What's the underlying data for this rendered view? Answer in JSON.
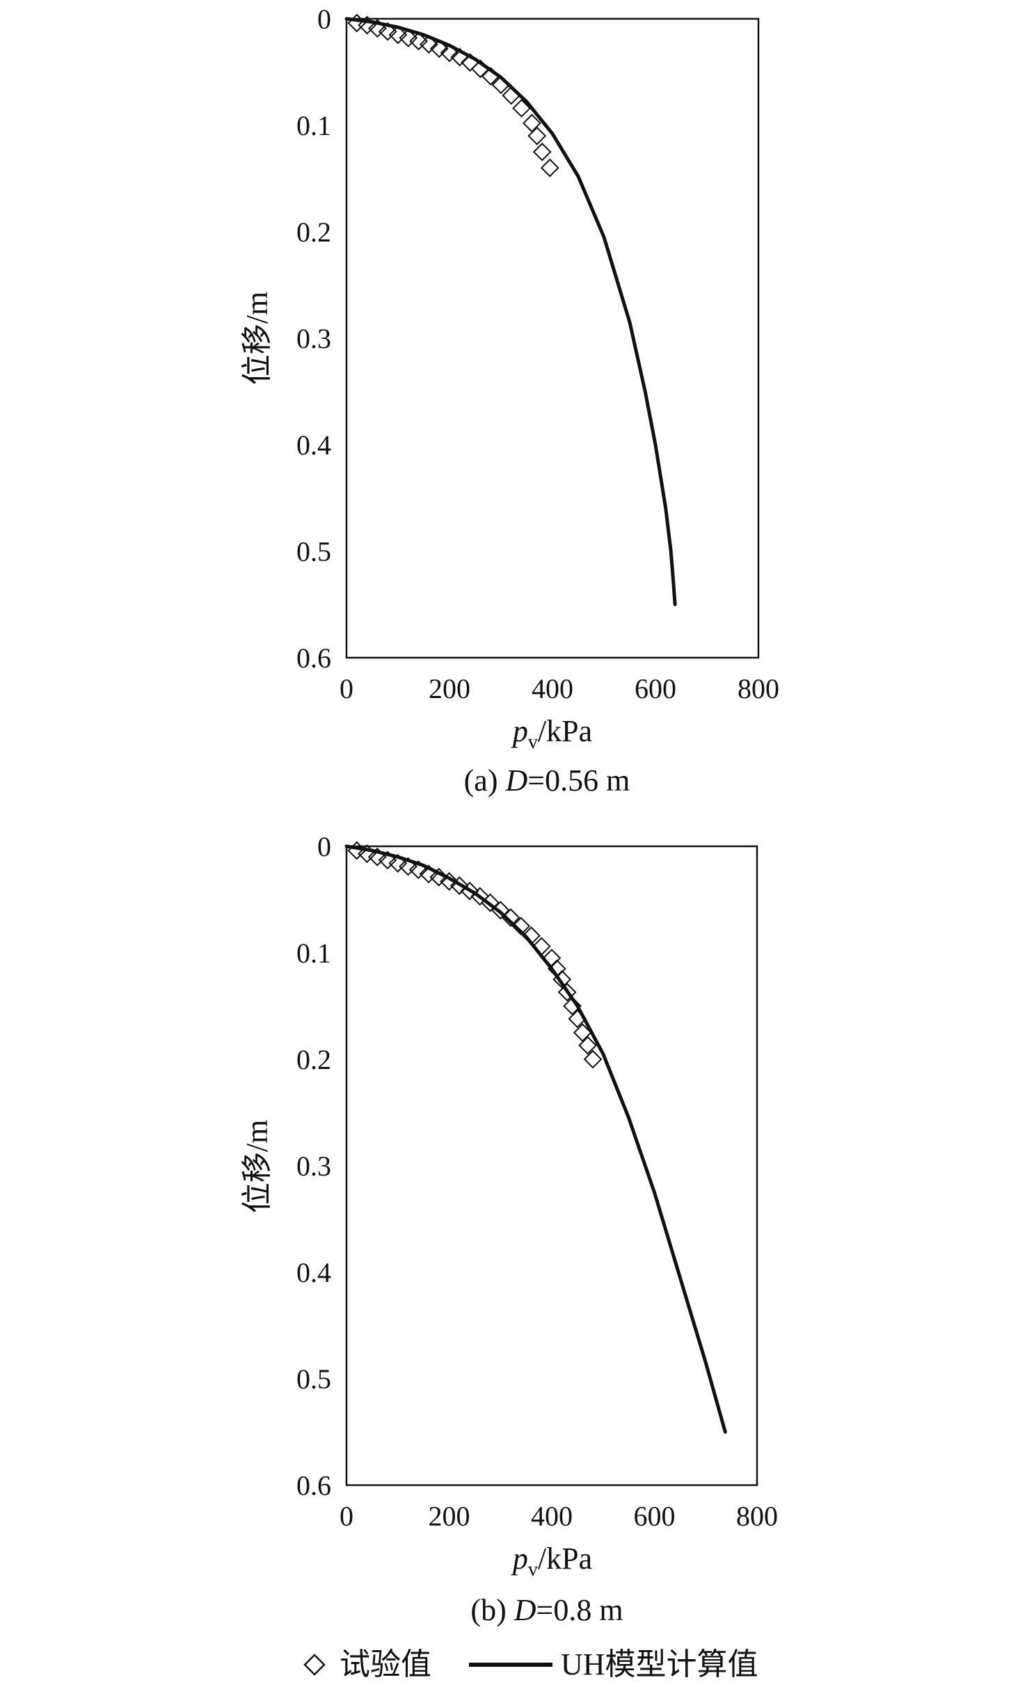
{
  "chart_data": [
    {
      "type": "scatter",
      "caption_prefix": "(a) ",
      "caption_var": "D",
      "caption_rest": "=0.56 m",
      "xlabel_var": "p",
      "xlabel_sub": "v",
      "xlabel_unit": "/kPa",
      "ylabel": "位移/m",
      "xlim": [
        0,
        800
      ],
      "ylim": [
        0,
        0.6
      ],
      "y_inverted": true,
      "xticks": [
        "0",
        "200",
        "400",
        "600",
        "800"
      ],
      "yticks": [
        "0",
        "0.1",
        "0.2",
        "0.3",
        "0.4",
        "0.5",
        "0.6"
      ],
      "grid": false,
      "series": [
        {
          "name": "试验值",
          "kind": "scatter",
          "marker": "diamond",
          "x": [
            20,
            40,
            60,
            80,
            100,
            120,
            140,
            160,
            180,
            200,
            220,
            240,
            260,
            280,
            300,
            320,
            340,
            360,
            370,
            380,
            395
          ],
          "y": [
            0.004,
            0.006,
            0.009,
            0.012,
            0.015,
            0.018,
            0.021,
            0.024,
            0.028,
            0.032,
            0.036,
            0.041,
            0.047,
            0.054,
            0.062,
            0.072,
            0.084,
            0.098,
            0.11,
            0.125,
            0.14
          ]
        },
        {
          "name": "UH模型计算值",
          "kind": "line",
          "x": [
            0,
            50,
            100,
            150,
            200,
            250,
            300,
            350,
            400,
            450,
            500,
            550,
            580,
            600,
            620,
            630,
            635,
            638
          ],
          "y": [
            0,
            0.003,
            0.008,
            0.015,
            0.025,
            0.038,
            0.055,
            0.078,
            0.108,
            0.148,
            0.205,
            0.285,
            0.35,
            0.4,
            0.46,
            0.5,
            0.53,
            0.55
          ]
        }
      ]
    },
    {
      "type": "scatter",
      "caption_prefix": "(b) ",
      "caption_var": "D",
      "caption_rest": "=0.8 m",
      "xlabel_var": "p",
      "xlabel_sub": "v",
      "xlabel_unit": "/kPa",
      "ylabel": "位移/m",
      "xlim": [
        0,
        800
      ],
      "ylim": [
        0,
        0.6
      ],
      "y_inverted": true,
      "xticks": [
        "0",
        "200",
        "400",
        "600",
        "800"
      ],
      "yticks": [
        "0",
        "0.1",
        "0.2",
        "0.3",
        "0.4",
        "0.5",
        "0.6"
      ],
      "grid": false,
      "series": [
        {
          "name": "试验值",
          "kind": "scatter",
          "marker": "diamond",
          "x": [
            20,
            40,
            60,
            80,
            100,
            120,
            140,
            160,
            180,
            200,
            220,
            240,
            260,
            280,
            300,
            320,
            340,
            360,
            380,
            400,
            410,
            420,
            430,
            440,
            450,
            460,
            470,
            480
          ],
          "y": [
            0.004,
            0.007,
            0.01,
            0.013,
            0.016,
            0.019,
            0.022,
            0.026,
            0.029,
            0.033,
            0.037,
            0.042,
            0.047,
            0.053,
            0.06,
            0.067,
            0.075,
            0.084,
            0.094,
            0.105,
            0.115,
            0.125,
            0.137,
            0.15,
            0.162,
            0.175,
            0.187,
            0.2
          ]
        },
        {
          "name": "UH模型计算值",
          "kind": "line",
          "x": [
            0,
            50,
            100,
            150,
            200,
            250,
            300,
            350,
            400,
            450,
            500,
            550,
            600,
            650,
            700,
            738
          ],
          "y": [
            0,
            0.004,
            0.01,
            0.018,
            0.03,
            0.044,
            0.062,
            0.085,
            0.115,
            0.15,
            0.195,
            0.255,
            0.325,
            0.405,
            0.485,
            0.55
          ]
        }
      ]
    }
  ],
  "legend": {
    "placement": "bottom",
    "items": [
      {
        "label": "试验值",
        "marker": "diamond"
      },
      {
        "label": "UH模型计算值",
        "marker": "line"
      }
    ]
  },
  "colors": {
    "ink": "#111111",
    "background": "#ffffff"
  }
}
